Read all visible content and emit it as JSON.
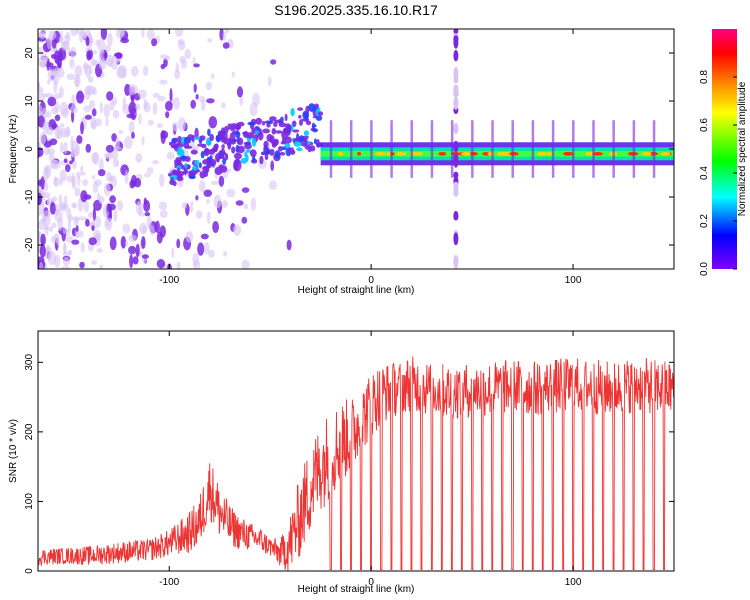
{
  "title": "S196.2025.335.16.10.R17",
  "colors": {
    "snr_line": "#ee3333",
    "scatter_purple": "#7a28e0",
    "scatter_light": "#d8c4f4",
    "axis": "#000000"
  },
  "chart_data": [
    {
      "type": "heatmap",
      "name": "spectrogram",
      "xlabel": "Height of straight line (km)",
      "ylabel": "Frequency (Hz)",
      "xlim": [
        -165,
        150
      ],
      "ylim": [
        -25,
        25
      ],
      "xticks": [
        -100,
        0,
        100
      ],
      "xtick_labels": [
        "-100",
        "0",
        "100"
      ],
      "yticks": [
        -20,
        -10,
        0,
        10,
        20
      ],
      "ytick_labels": [
        "-20",
        "-10",
        "0",
        "10",
        "20"
      ],
      "colorbar": {
        "label": "Normalized spectral amplitude",
        "range": [
          0,
          1
        ],
        "ticks": [
          0.0,
          0.2,
          0.4,
          0.6,
          0.8
        ],
        "tick_labels": [
          "0.0",
          "0.2",
          "0.4",
          "0.6",
          "0.8"
        ],
        "colormap": [
          "#8000ff",
          "#0000ff",
          "#00ffff",
          "#00ff00",
          "#ffff00",
          "#ff8000",
          "#ff0000",
          "#ff0080"
        ]
      },
      "regions": [
        {
          "label": "noise",
          "x_range": [
            -165,
            -55
          ],
          "freq_range": [
            -25,
            25
          ],
          "amplitude": 0.05
        },
        {
          "label": "transition",
          "x_range": [
            -100,
            -25
          ],
          "freq_range": [
            -5,
            8
          ],
          "amplitude": 0.2
        },
        {
          "label": "carrier",
          "x_range": [
            -25,
            150
          ],
          "freq_center": -1,
          "freq_width": 3,
          "amplitude": 0.5
        }
      ],
      "interference_x": 42,
      "gap_positions_km": [
        -20,
        -10,
        0,
        10,
        20,
        30,
        40,
        50,
        60,
        70,
        80,
        90,
        100,
        110,
        120,
        130,
        140
      ]
    },
    {
      "type": "line",
      "name": "snr",
      "xlabel": "Height of straight line (km)",
      "ylabel": "SNR (10 * v/v)",
      "xlim": [
        -165,
        150
      ],
      "ylim": [
        0,
        345
      ],
      "xticks": [
        -100,
        0,
        100
      ],
      "xtick_labels": [
        "-100",
        "0",
        "100"
      ],
      "yticks": [
        0,
        100,
        200,
        300
      ],
      "ytick_labels": [
        "0",
        "100",
        "200",
        "300"
      ],
      "series": [
        {
          "name": "SNR",
          "x": [
            -165,
            -150,
            -140,
            -130,
            -120,
            -110,
            -100,
            -90,
            -85,
            -80,
            -75,
            -70,
            -65,
            -60,
            -55,
            -50,
            -45,
            -40,
            -35,
            -30,
            -25,
            -20,
            -15,
            -10,
            -5,
            0,
            5,
            10,
            15,
            20,
            30,
            40,
            50,
            60,
            70,
            80,
            90,
            100,
            110,
            120,
            130,
            140,
            150
          ],
          "y": [
            20,
            22,
            22,
            25,
            28,
            30,
            40,
            55,
            70,
            120,
            85,
            65,
            55,
            50,
            45,
            35,
            25,
            40,
            80,
            120,
            150,
            170,
            185,
            195,
            215,
            240,
            255,
            260,
            265,
            270,
            260,
            258,
            260,
            262,
            265,
            262,
            265,
            268,
            265,
            262,
            268,
            265,
            262
          ],
          "noise_amplitude": [
            12,
            12,
            14,
            15,
            16,
            16,
            20,
            30,
            38,
            45,
            40,
            30,
            25,
            20,
            18,
            15,
            20,
            45,
            60,
            65,
            65,
            65,
            60,
            55,
            50,
            48,
            45,
            40,
            40,
            40,
            40,
            40,
            40,
            40,
            40,
            40,
            40,
            40,
            40,
            40,
            40,
            40,
            40
          ]
        }
      ],
      "dropout_positions_km": [
        -20,
        -15,
        -10,
        -5,
        0,
        5,
        10,
        15,
        20,
        25,
        30,
        35,
        40,
        45,
        50,
        55,
        60,
        65,
        70,
        75,
        80,
        85,
        90,
        95,
        100,
        105,
        110,
        115,
        120,
        125,
        130,
        135,
        140,
        145
      ]
    }
  ]
}
